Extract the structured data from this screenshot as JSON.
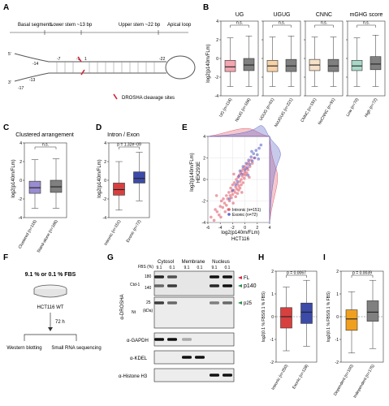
{
  "panelA": {
    "letter": "A",
    "regions": [
      "Basal segments",
      "Lower stem ~13 bp",
      "Upper stem ~22 bp",
      "Apical loop"
    ],
    "pos_labels": [
      "-14",
      "-7",
      "-1",
      "1",
      "-13",
      "-17",
      "-22"
    ],
    "legend": "DROSHA cleavage sites"
  },
  "panelB": {
    "letter": "B",
    "titles": [
      "UG",
      "UGUG",
      "CNNC",
      "mGHG score"
    ],
    "ylabel": "log2(p140m/FLm)",
    "pvals": [
      "n.s.",
      "n.s.",
      "n.s.",
      "n.s."
    ]
  },
  "panelC": {
    "letter": "C",
    "title": "Clustered arrangement",
    "ylabel": "log2(p140m/FLm)",
    "pval": "n.s."
  },
  "panelD": {
    "letter": "D",
    "title": "Intron / Exon",
    "ylabel": "log2(p140m/FLm)",
    "pval": "p = 1.32e−09"
  },
  "panelE": {
    "letter": "E",
    "xlabel": "log2(p140m/FLm)",
    "xsub": "HCT116",
    "ylabel": "log2(p140m/FLm)",
    "ysub": "HEK293E",
    "legend": [
      "Intronic (n=151)",
      "Exonic (n=72)"
    ]
  },
  "panelF": {
    "letter": "F",
    "title": "9.1 % or 0.1 % FBS",
    "cell": "HCT116 WT",
    "time": "72 h",
    "out": [
      "Western blotting",
      "Small RNA sequencing"
    ]
  },
  "panelG": {
    "letter": "G",
    "fbs": "FBS (%)",
    "fractions": [
      "Cytosol",
      "Membrane",
      "Nucleus"
    ],
    "lanes": [
      "9.1",
      "0.1",
      "9.1",
      "0.1",
      "9.1",
      "0.1"
    ],
    "antibody": "α-DROSHA",
    "ctd": "Ctd-1",
    "nt": "Nt",
    "kda": "(kDa)",
    "markers": [
      "180",
      "140",
      "25"
    ],
    "bands": [
      "FL",
      "p140",
      "p25"
    ],
    "loading": [
      "α-GAPDH",
      "α-KDEL",
      "α-Histone H3"
    ]
  },
  "panelH": {
    "letter": "H",
    "ylabel": "log2(0.1 % FBS/9.1 % FBS)",
    "pval": "p = 0.0067",
    "cats": [
      "Intronic (n=250)",
      "Exonic (n=128)"
    ]
  },
  "panelI": {
    "letter": "I",
    "ylabel": "log2(0.1 % FBS/9.1 % FBS)",
    "pval": "p = 0.0039",
    "cats": [
      "Dependent (n=100)",
      "Independent (n=175)"
    ]
  },
  "chart_data": [
    {
      "type": "box",
      "panel": "B",
      "ylabel": "log2(p140m/FLm)",
      "ylim": [
        -4,
        4
      ],
      "groups": [
        {
          "title": "UG",
          "categories": [
            "UG (n=116)",
            "NoUG (n=166)"
          ],
          "stats": [
            [
              -3,
              -1.4,
              -0.9,
              -0.2,
              2.2
            ],
            [
              -3,
              -1.3,
              -0.7,
              0,
              2.4
            ]
          ],
          "colors": [
            "#f3a6b0",
            "#808080"
          ],
          "pval": "n.s."
        },
        {
          "title": "UGUG",
          "categories": [
            "UGUG (n=61)",
            "NoUGUG (n=221)"
          ],
          "stats": [
            [
              -3,
              -1.4,
              -0.8,
              -0.2,
              2.3
            ],
            [
              -3,
              -1.4,
              -0.8,
              -0.1,
              2.4
            ]
          ],
          "colors": [
            "#f7d2a8",
            "#808080"
          ],
          "pval": "n.s."
        },
        {
          "title": "CNNC",
          "categories": [
            "CNNC (n=191)",
            "NoCNNC (n=91)"
          ],
          "stats": [
            [
              -3,
              -1.3,
              -0.7,
              -0.1,
              2.3
            ],
            [
              -3,
              -1.4,
              -0.8,
              -0.1,
              2.3
            ]
          ],
          "colors": [
            "#f7e0c8",
            "#808080"
          ],
          "pval": "n.s."
        },
        {
          "title": "mGHG score",
          "categories": [
            "Low (n=70)",
            "High (n=72)"
          ],
          "stats": [
            [
              -3,
              -1.3,
              -0.8,
              -0.2,
              2.2
            ],
            [
              -3,
              -1.2,
              -0.6,
              0.2,
              2.5
            ]
          ],
          "colors": [
            "#a8d8c8",
            "#808080"
          ],
          "pval": "n.s."
        }
      ]
    },
    {
      "type": "box",
      "panel": "C",
      "title": "Clustered arrangement",
      "ylabel": "log2(p140m/FLm)",
      "ylim": [
        -4,
        4
      ],
      "categories": [
        "Clustered (n=116)",
        "Stand-alone (n=166)"
      ],
      "stats": [
        [
          -3,
          -1.4,
          -0.8,
          -0.1,
          2.2
        ],
        [
          -3,
          -1.3,
          -0.7,
          0,
          2.3
        ]
      ],
      "colors": [
        "#9a8cd0",
        "#808080"
      ],
      "pval": "n.s."
    },
    {
      "type": "box",
      "panel": "D",
      "title": "Intron / Exon",
      "ylabel": "log2(p140m/FLm)",
      "ylim": [
        -4,
        4
      ],
      "categories": [
        "Intronic (n=151)",
        "Exonic (n=72)"
      ],
      "stats": [
        [
          -3.2,
          -1.6,
          -1.0,
          -0.3,
          2.0
        ],
        [
          -2.2,
          -0.3,
          0.2,
          0.9,
          3.0
        ]
      ],
      "colors": [
        "#d84040",
        "#3c4aa8"
      ],
      "pval": "p = 1.32e−09"
    },
    {
      "type": "scatter",
      "panel": "E",
      "xlabel": "log2(p140m/FLm) HCT116",
      "ylabel": "log2(p140m/FLm) HEK293E",
      "xlim": [
        -6,
        4
      ],
      "ylim": [
        -4,
        4
      ],
      "series": [
        {
          "name": "Intronic (n=151)",
          "color": "#e06070",
          "points": [
            [
              -5.5,
              -3.5
            ],
            [
              -5,
              -3.8
            ],
            [
              -4.8,
              -2.8
            ],
            [
              -4.5,
              -3
            ],
            [
              -4.2,
              -3.3
            ],
            [
              -4,
              -2.5
            ],
            [
              -3.8,
              -2
            ],
            [
              -3.6,
              -2.6
            ],
            [
              -3.5,
              -1.8
            ],
            [
              -3.3,
              -2.2
            ],
            [
              -3.2,
              -3
            ],
            [
              -3,
              -1.5
            ],
            [
              -3,
              -2.4
            ],
            [
              -2.8,
              -1.8
            ],
            [
              -2.6,
              -1.2
            ],
            [
              -2.5,
              -2
            ],
            [
              -2.4,
              -1.5
            ],
            [
              -2.3,
              -0.8
            ],
            [
              -2.2,
              -1.7
            ],
            [
              -2.1,
              -1.1
            ],
            [
              -2,
              -0.5
            ],
            [
              -2,
              -1.4
            ],
            [
              -1.9,
              -2.2
            ],
            [
              -1.8,
              -1
            ],
            [
              -1.7,
              -0.3
            ],
            [
              -1.6,
              -1.2
            ],
            [
              -1.5,
              -0.7
            ],
            [
              -1.5,
              -1.6
            ],
            [
              -1.4,
              0
            ],
            [
              -1.3,
              -0.9
            ],
            [
              -1.2,
              -0.4
            ],
            [
              -1.2,
              -1.3
            ],
            [
              -1.1,
              0.2
            ],
            [
              -1,
              -0.6
            ],
            [
              -1,
              -1
            ],
            [
              -0.9,
              0.4
            ],
            [
              -0.8,
              -0.2
            ],
            [
              -0.8,
              -0.8
            ],
            [
              -0.7,
              0.6
            ],
            [
              -0.6,
              0
            ],
            [
              -0.6,
              -0.5
            ],
            [
              -0.5,
              0.8
            ],
            [
              -0.4,
              0.3
            ],
            [
              -0.3,
              -0.3
            ],
            [
              -0.3,
              1
            ],
            [
              -0.2,
              0.5
            ],
            [
              -0.1,
              0.1
            ],
            [
              0,
              0.7
            ],
            [
              0,
              1.2
            ],
            [
              0.1,
              0.4
            ],
            [
              0.2,
              1
            ],
            [
              0.3,
              0.6
            ],
            [
              0.4,
              1.4
            ],
            [
              0.5,
              0.9
            ],
            [
              0.6,
              1.6
            ],
            [
              0.8,
              1.2
            ],
            [
              1,
              1.8
            ],
            [
              1.2,
              1.5
            ],
            [
              1.5,
              2
            ],
            [
              -4.6,
              -1.5
            ],
            [
              -3.9,
              -3.5
            ],
            [
              -2.7,
              -2.8
            ],
            [
              -1.8,
              0.5
            ],
            [
              -0.5,
              -1.2
            ],
            [
              0.7,
              0.2
            ]
          ]
        },
        {
          "name": "Exonic (n=72)",
          "color": "#6068c8",
          "points": [
            [
              -2.5,
              -1.8
            ],
            [
              -2,
              -1
            ],
            [
              -1.5,
              -0.5
            ],
            [
              -1,
              0.3
            ],
            [
              -0.8,
              0.8
            ],
            [
              -0.5,
              0.5
            ],
            [
              -0.3,
              1.2
            ],
            [
              0,
              0.9
            ],
            [
              0.2,
              1.5
            ],
            [
              0.4,
              1.1
            ],
            [
              0.6,
              1.8
            ],
            [
              0.8,
              1.4
            ],
            [
              1,
              2.1
            ],
            [
              1.2,
              1.7
            ],
            [
              1.4,
              2.4
            ],
            [
              1.6,
              2
            ],
            [
              1.8,
              2.7
            ],
            [
              2,
              2.3
            ],
            [
              2.3,
              2.9
            ],
            [
              2.6,
              3.2
            ],
            [
              -1.2,
              -0.2
            ],
            [
              0.5,
              0.4
            ],
            [
              1.1,
              2.6
            ],
            [
              2.2,
              1.9
            ]
          ]
        }
      ],
      "legend": "bottom-right"
    },
    {
      "type": "box",
      "panel": "H",
      "ylabel": "log2(0.1 % FBS/9.1 % FBS)",
      "ylim": [
        -2,
        2
      ],
      "categories": [
        "Intronic (n=250)",
        "Exonic (n=128)"
      ],
      "stats": [
        [
          -1.5,
          -0.5,
          0,
          0.4,
          1.3
        ],
        [
          -1.3,
          -0.3,
          0.2,
          0.6,
          1.6
        ]
      ],
      "colors": [
        "#d84040",
        "#3c4aa8"
      ],
      "pval": "p = 0.0067"
    },
    {
      "type": "box",
      "panel": "I",
      "ylabel": "log2(0.1 % FBS/9.1 % FBS)",
      "ylim": [
        -2,
        2
      ],
      "categories": [
        "Dependent (n=100)",
        "Independent (n=175)"
      ],
      "stats": [
        [
          -1.6,
          -0.6,
          -0.1,
          0.3,
          1.1
        ],
        [
          -1.4,
          -0.2,
          0.2,
          0.7,
          1.6
        ]
      ],
      "colors": [
        "#f0a020",
        "#808080"
      ],
      "pval": "p = 0.0039"
    }
  ]
}
